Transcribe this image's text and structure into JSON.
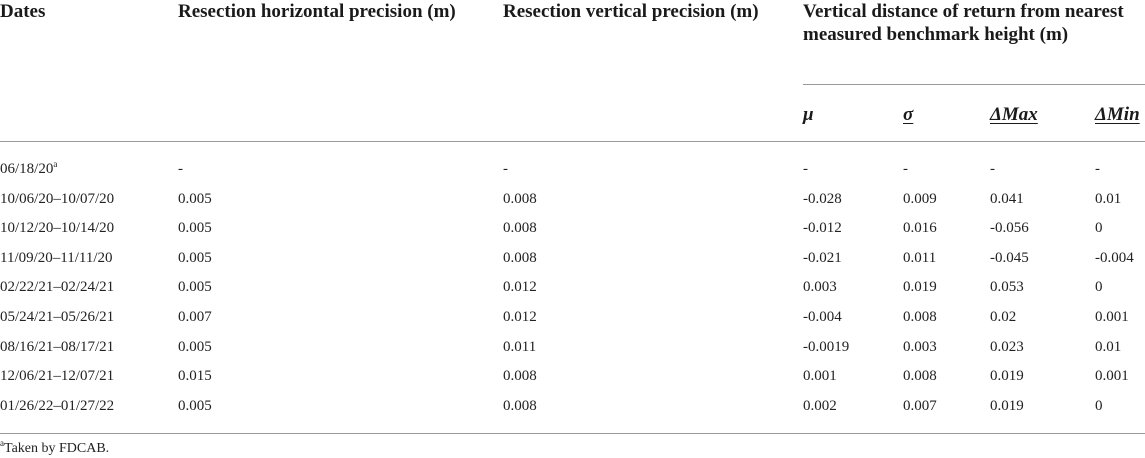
{
  "table": {
    "headers": {
      "dates": "Dates",
      "horizontal_precision": "Resection horizontal precision (m)",
      "vertical_precision": "Resection vertical precision (m)",
      "distance_group": "Vertical distance of return from nearest measured benchmark height (m)",
      "mu": "μ",
      "sigma": "σ",
      "delta_max": "ΔMax",
      "delta_min": "ΔMin"
    },
    "rows": [
      {
        "date": "06/18/20",
        "date_sup": "a",
        "horiz": "-",
        "vert": "-",
        "mu": "-",
        "sigma": "-",
        "dmax": "-",
        "dmin": "-"
      },
      {
        "date": "10/06/20–10/07/20",
        "date_sup": "",
        "horiz": "0.005",
        "vert": "0.008",
        "mu": "-0.028",
        "sigma": "0.009",
        "dmax": "0.041",
        "dmin": "0.01"
      },
      {
        "date": "10/12/20–10/14/20",
        "date_sup": "",
        "horiz": "0.005",
        "vert": "0.008",
        "mu": "-0.012",
        "sigma": "0.016",
        "dmax": "-0.056",
        "dmin": "0"
      },
      {
        "date": "11/09/20–11/11/20",
        "date_sup": "",
        "horiz": "0.005",
        "vert": "0.008",
        "mu": "-0.021",
        "sigma": "0.011",
        "dmax": "-0.045",
        "dmin": "-0.004"
      },
      {
        "date": "02/22/21–02/24/21",
        "date_sup": "",
        "horiz": "0.005",
        "vert": "0.012",
        "mu": "0.003",
        "sigma": "0.019",
        "dmax": "0.053",
        "dmin": "0"
      },
      {
        "date": "05/24/21–05/26/21",
        "date_sup": "",
        "horiz": "0.007",
        "vert": "0.012",
        "mu": "-0.004",
        "sigma": "0.008",
        "dmax": "0.02",
        "dmin": "0.001"
      },
      {
        "date": "08/16/21–08/17/21",
        "date_sup": "",
        "horiz": "0.005",
        "vert": "0.011",
        "mu": "-0.0019",
        "sigma": "0.003",
        "dmax": "0.023",
        "dmin": "0.01"
      },
      {
        "date": "12/06/21–12/07/21",
        "date_sup": "",
        "horiz": "0.015",
        "vert": "0.008",
        "mu": "0.001",
        "sigma": "0.008",
        "dmax": "0.019",
        "dmin": "0.001"
      },
      {
        "date": "01/26/22–01/27/22",
        "date_sup": "",
        "horiz": "0.005",
        "vert": "0.008",
        "mu": "0.002",
        "sigma": "0.007",
        "dmax": "0.019",
        "dmin": "0"
      }
    ],
    "footnote": {
      "marker": "a",
      "text": "Taken by FDCAB."
    }
  }
}
